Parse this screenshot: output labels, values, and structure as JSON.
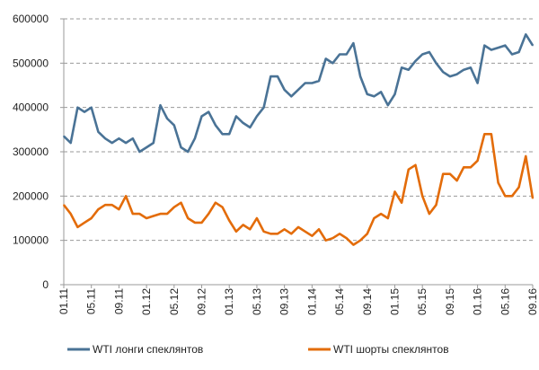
{
  "chart_data": {
    "type": "line",
    "title": "",
    "xlabel": "",
    "ylabel": "",
    "ylim": [
      0,
      600000
    ],
    "yticks": [
      "0",
      "100000",
      "200000",
      "300000",
      "400000",
      "500000",
      "600000"
    ],
    "xticks": [
      "01.11",
      "05.11",
      "09.11",
      "01.12",
      "05.12",
      "09.12",
      "01.13",
      "05.13",
      "09.13",
      "01.14",
      "05.14",
      "09.14",
      "01.15",
      "05.15",
      "09.15",
      "01.16",
      "05.16",
      "09.16"
    ],
    "grid": "horizontal dashed",
    "legend_position": "bottom",
    "x": [
      "01.11",
      "02.11",
      "03.11",
      "04.11",
      "05.11",
      "06.11",
      "07.11",
      "08.11",
      "09.11",
      "10.11",
      "11.11",
      "12.11",
      "01.12",
      "02.12",
      "03.12",
      "04.12",
      "05.12",
      "06.12",
      "07.12",
      "08.12",
      "09.12",
      "10.12",
      "11.12",
      "12.12",
      "01.13",
      "02.13",
      "03.13",
      "04.13",
      "05.13",
      "06.13",
      "07.13",
      "08.13",
      "09.13",
      "10.13",
      "11.13",
      "12.13",
      "01.14",
      "02.14",
      "03.14",
      "04.14",
      "05.14",
      "06.14",
      "07.14",
      "08.14",
      "09.14",
      "10.14",
      "11.14",
      "12.14",
      "01.15",
      "02.15",
      "03.15",
      "04.15",
      "05.15",
      "06.15",
      "07.15",
      "08.15",
      "09.15",
      "10.15",
      "11.15",
      "12.15",
      "01.16",
      "02.16",
      "03.16",
      "04.16",
      "05.16",
      "06.16",
      "07.16",
      "08.16",
      "09.16"
    ],
    "series": [
      {
        "name": "WTI лонги спеклянтов",
        "color": "#4a7396",
        "values": [
          335000,
          320000,
          400000,
          390000,
          400000,
          345000,
          330000,
          320000,
          330000,
          320000,
          330000,
          300000,
          310000,
          320000,
          405000,
          375000,
          360000,
          310000,
          300000,
          330000,
          380000,
          390000,
          360000,
          340000,
          340000,
          380000,
          365000,
          355000,
          380000,
          400000,
          470000,
          470000,
          440000,
          425000,
          440000,
          455000,
          455000,
          460000,
          510000,
          500000,
          520000,
          520000,
          545000,
          470000,
          430000,
          425000,
          435000,
          405000,
          430000,
          490000,
          485000,
          505000,
          520000,
          525000,
          500000,
          480000,
          470000,
          475000,
          485000,
          490000,
          455000,
          540000,
          530000,
          535000,
          540000,
          520000,
          525000,
          565000,
          540000
        ]
      },
      {
        "name": "WTI шорты спеклянтов",
        "color": "#e36c0a",
        "values": [
          180000,
          160000,
          130000,
          140000,
          150000,
          170000,
          180000,
          180000,
          170000,
          200000,
          160000,
          160000,
          150000,
          155000,
          160000,
          160000,
          175000,
          185000,
          150000,
          140000,
          140000,
          160000,
          185000,
          175000,
          145000,
          120000,
          135000,
          125000,
          150000,
          120000,
          115000,
          115000,
          125000,
          115000,
          130000,
          120000,
          110000,
          125000,
          100000,
          105000,
          115000,
          105000,
          90000,
          100000,
          115000,
          150000,
          160000,
          150000,
          210000,
          185000,
          260000,
          270000,
          200000,
          160000,
          180000,
          250000,
          250000,
          235000,
          265000,
          265000,
          280000,
          340000,
          340000,
          230000,
          200000,
          200000,
          220000,
          290000,
          195000
        ]
      }
    ]
  }
}
